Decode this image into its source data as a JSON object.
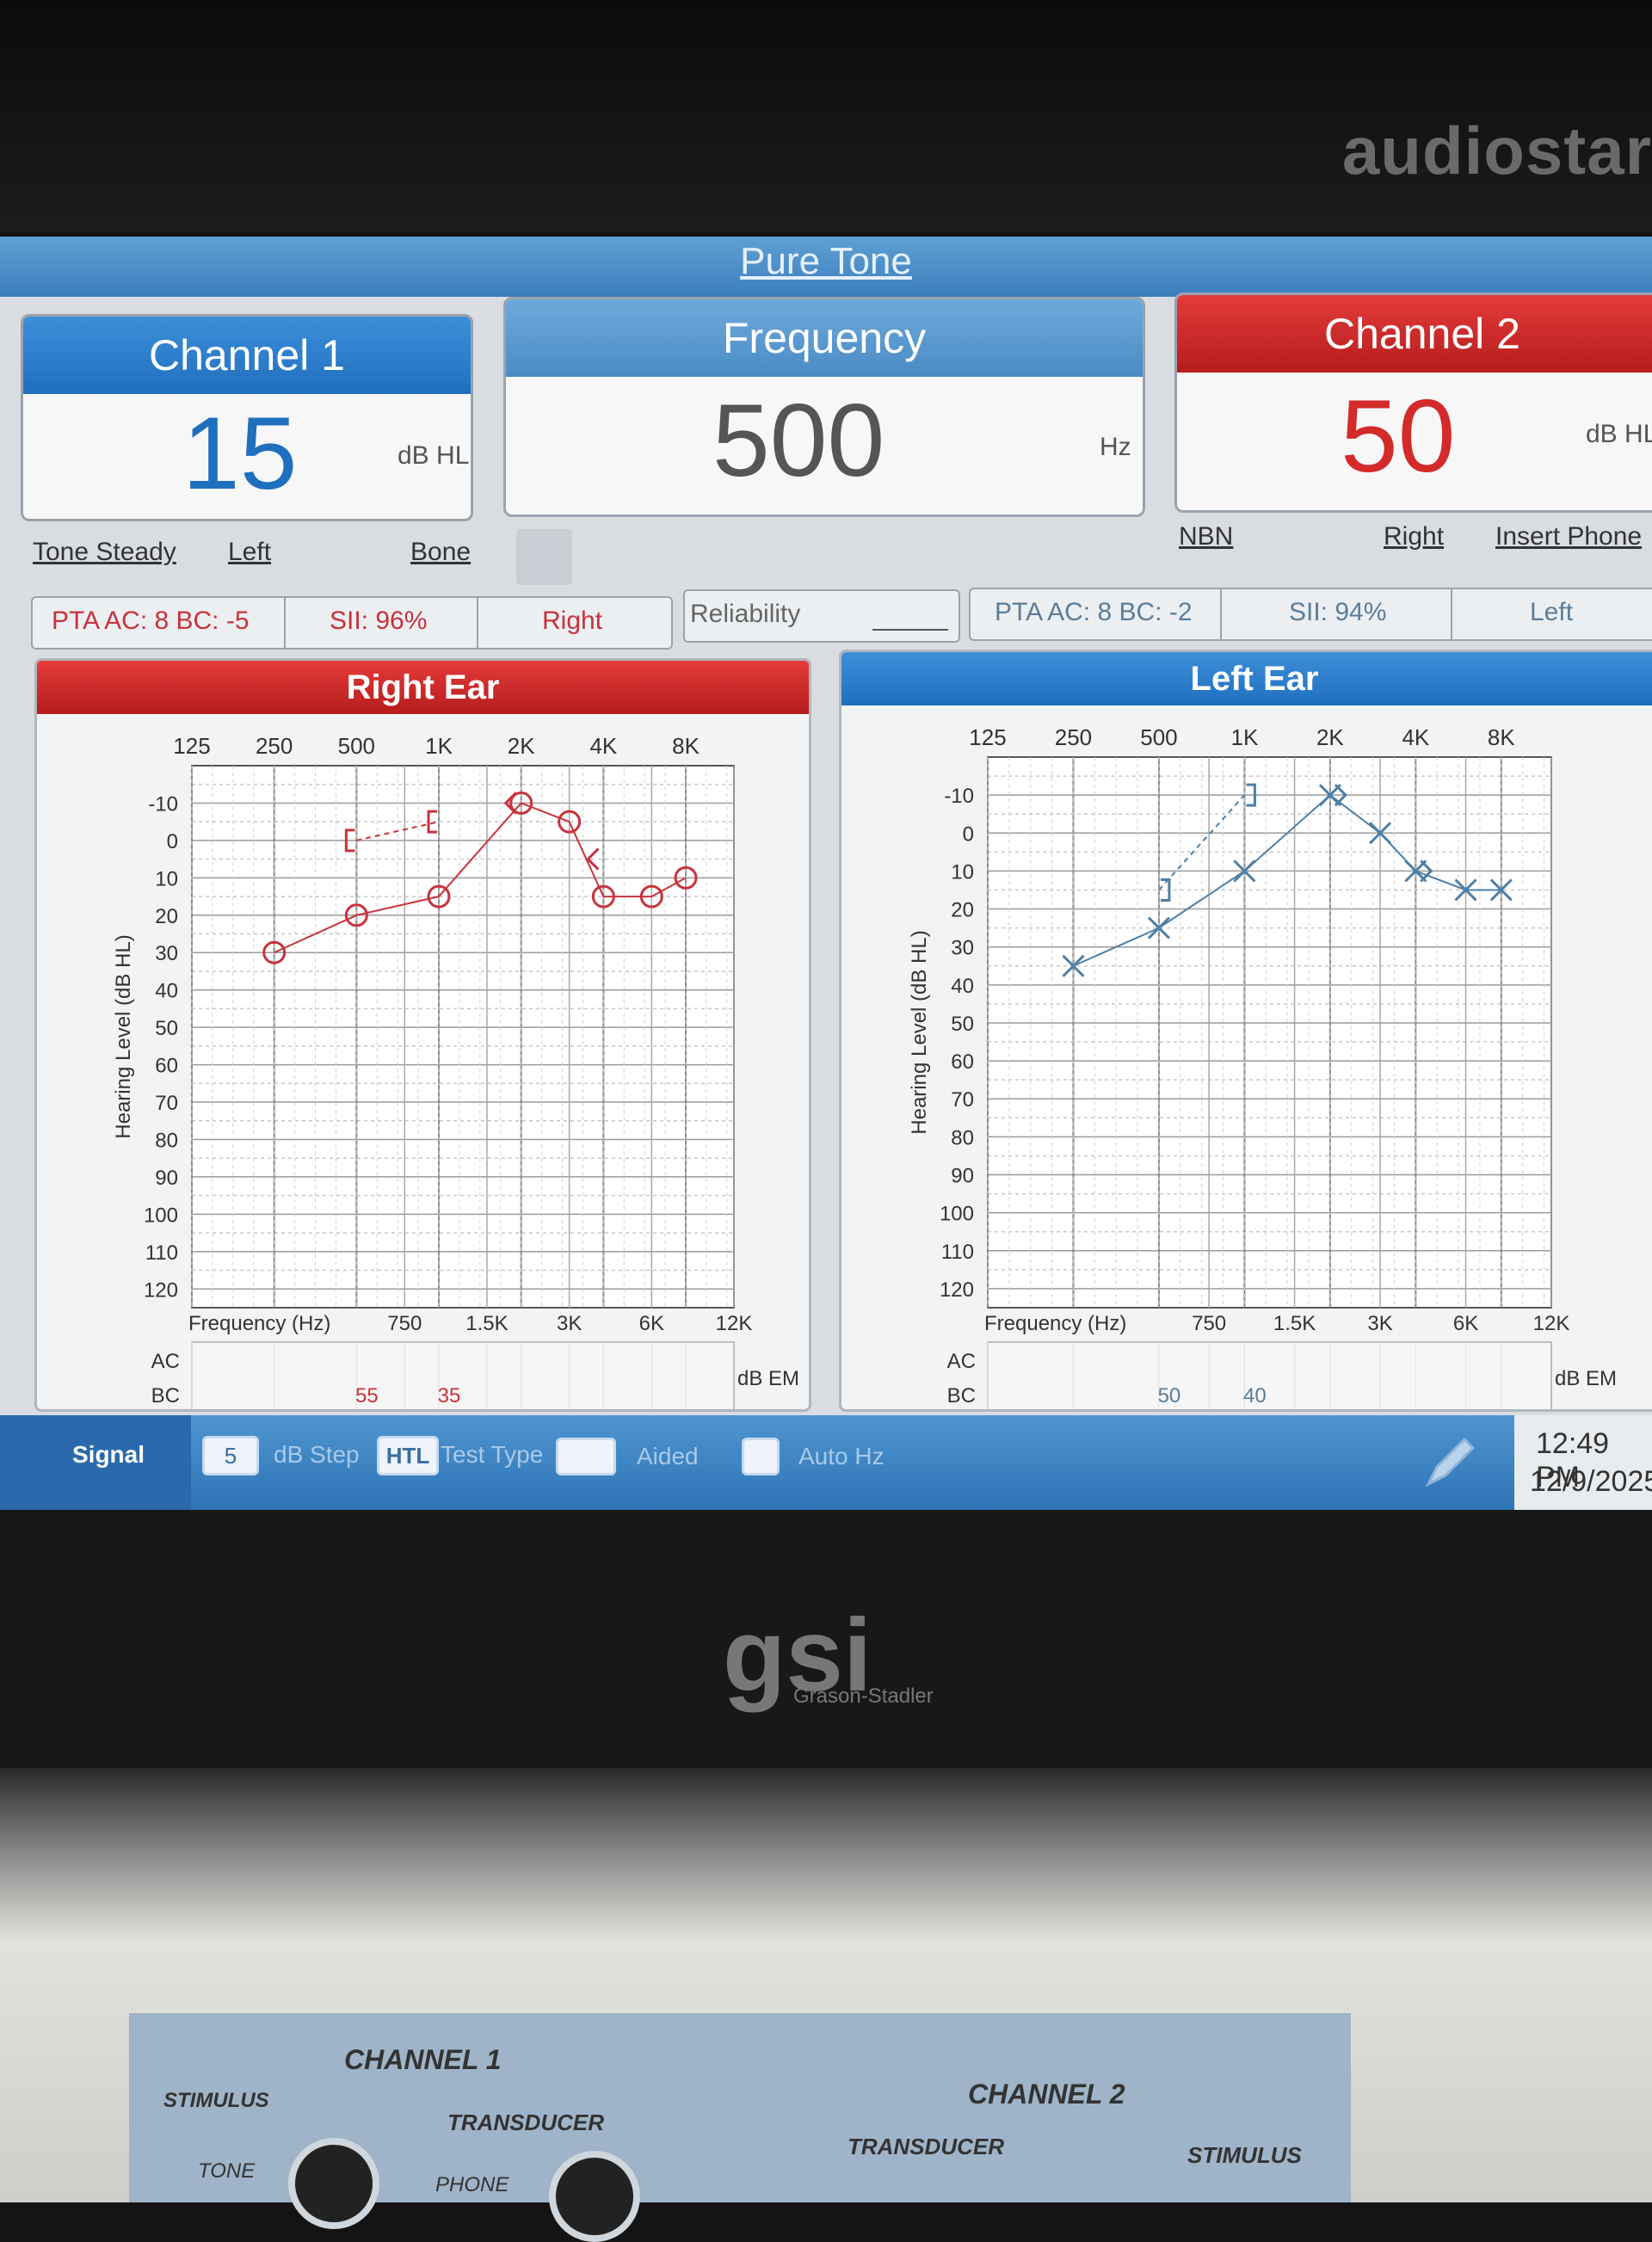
{
  "bezel": {
    "brand": "audiostar"
  },
  "title": "Pure Tone",
  "channel1": {
    "label": "Channel 1",
    "value": "15",
    "unit": "dB HL",
    "stimulus": "Tone Steady",
    "route": "Left",
    "transducer": "Bone",
    "color": "#1f6fbf"
  },
  "frequency": {
    "label": "Frequency",
    "value": "500",
    "unit": "Hz"
  },
  "channel2": {
    "label": "Channel 2",
    "value": "50",
    "unit": "dB HL",
    "stimulus": "NBN",
    "route": "Right",
    "transducer": "Insert Phone",
    "color": "#d42a2a"
  },
  "stats_right": {
    "pta": "PTA  AC: 8  BC: -5",
    "sii": "SII: 96%",
    "ear": "Right"
  },
  "reliability": {
    "label": "Reliability"
  },
  "stats_left": {
    "pta": "PTA  AC: 8  BC: -2",
    "sii": "SII: 94%",
    "ear": "Left"
  },
  "right_ear": {
    "title": "Right Ear",
    "ylabel": "Hearing Level (dB HL)",
    "xlabel": "Frequency (Hz)",
    "ac_label": "AC",
    "bc_label": "BC",
    "em_label": "dB EM",
    "bc_masking": [
      {
        "freq": 500,
        "text": "55"
      },
      {
        "freq": 1000,
        "text": "35"
      }
    ]
  },
  "left_ear": {
    "title": "Left Ear",
    "ylabel": "Hearing Level (dB HL)",
    "xlabel": "Frequency (Hz)",
    "ac_label": "AC",
    "bc_label": "BC",
    "em_label": "dB EM",
    "bc_masking": [
      {
        "freq": 500,
        "text": "50"
      },
      {
        "freq": 1000,
        "text": "40"
      }
    ]
  },
  "chart_data": [
    {
      "type": "line",
      "title": "Right Ear",
      "ylabel": "Hearing Level (dB HL)",
      "xlabel": "Frequency (Hz)",
      "x_ticks_top": [
        "125",
        "250",
        "500",
        "1K",
        "2K",
        "4K",
        "8K"
      ],
      "x_ticks_bottom": [
        "750",
        "1.5K",
        "3K",
        "6K",
        "12K"
      ],
      "y_ticks": [
        "-10",
        "0",
        "10",
        "20",
        "30",
        "40",
        "50",
        "60",
        "70",
        "80",
        "90",
        "100",
        "110",
        "120"
      ],
      "ylim": [
        -10,
        120
      ],
      "series": [
        {
          "symbol": "circle",
          "color": "#c8323c",
          "x": [
            250,
            500,
            1000,
            2000,
            3000,
            4000,
            6000,
            8000
          ],
          "y": [
            30,
            20,
            15,
            -10,
            -5,
            15,
            15,
            10
          ]
        },
        {
          "symbol": "masked-bracket",
          "color": "#c8323c",
          "x": [
            500,
            1000
          ],
          "y": [
            0,
            -5
          ]
        },
        {
          "symbol": "unmasked-bc",
          "color": "#c8323c",
          "x": [
            2000,
            4000
          ],
          "y": [
            -10,
            5
          ]
        }
      ]
    },
    {
      "type": "line",
      "title": "Left Ear",
      "ylabel": "Hearing Level (dB HL)",
      "xlabel": "Frequency (Hz)",
      "x_ticks_top": [
        "125",
        "250",
        "500",
        "1K",
        "2K",
        "4K",
        "8K"
      ],
      "x_ticks_bottom": [
        "750",
        "1.5K",
        "3K",
        "6K",
        "12K"
      ],
      "y_ticks": [
        "-10",
        "0",
        "10",
        "20",
        "30",
        "40",
        "50",
        "60",
        "70",
        "80",
        "90",
        "100",
        "110",
        "120"
      ],
      "ylim": [
        -10,
        120
      ],
      "series": [
        {
          "symbol": "x",
          "color": "#4d7fa6",
          "x": [
            250,
            500,
            1000,
            2000,
            3000,
            4000,
            6000,
            8000
          ],
          "y": [
            35,
            25,
            10,
            -10,
            0,
            10,
            15,
            15
          ]
        },
        {
          "symbol": "masked-bracket",
          "color": "#4d7fa6",
          "x": [
            500,
            1000
          ],
          "y": [
            15,
            -10
          ]
        },
        {
          "symbol": "unmasked-bc",
          "color": "#4d7fa6",
          "x": [
            2000,
            4000
          ],
          "y": [
            -10,
            10
          ]
        }
      ]
    }
  ],
  "signal_bar": {
    "signal": "Signal",
    "step_value": "5",
    "step_label": "dB Step",
    "test_type_value": "HTL",
    "test_type_label": "Test Type",
    "aided_label": "Aided",
    "autohz_label": "Auto Hz",
    "time": "12:49 PM",
    "date": "12/9/2025"
  },
  "logo": {
    "name": "gsi",
    "sub": "Grason-Stadler"
  },
  "console": {
    "ch1": "CHANNEL 1",
    "ch2": "CHANNEL 2",
    "stimulus1": "STIMULUS",
    "transducer1": "TRANSDUCER",
    "transducer2": "TRANSDUCER",
    "stimulus2": "STIMULUS",
    "tone": "TONE",
    "phone": "PHONE"
  }
}
